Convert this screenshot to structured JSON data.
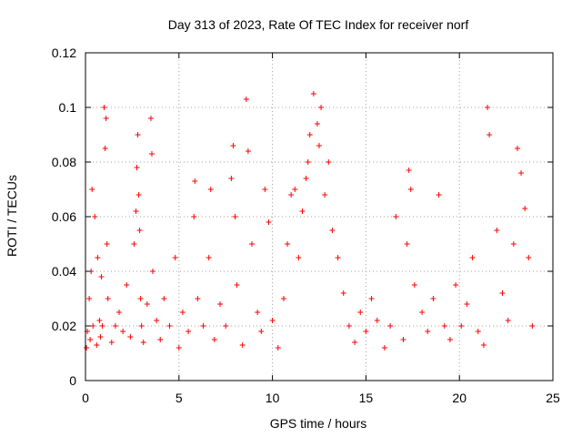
{
  "chart_data": {
    "type": "scatter",
    "title": "Day 313 of 2023, Rate Of TEC Index for receiver norf",
    "xlabel": "GPS time / hours",
    "ylabel": "ROTI / TECUs",
    "xlim": [
      0,
      25
    ],
    "ylim": [
      0,
      0.12
    ],
    "x_ticks": [
      "0",
      "5",
      "10",
      "15",
      "20",
      "25"
    ],
    "y_ticks": [
      "0",
      "0.02",
      "0.04",
      "0.06",
      "0.08",
      "0.1",
      "0.12"
    ],
    "grid": true,
    "marker": "plus",
    "color": "#ff0000",
    "series": [
      {
        "x": [
          0.05,
          0.1,
          0.2,
          0.25,
          0.3,
          0.35,
          0.4,
          0.5,
          0.6,
          0.65,
          0.75,
          0.8,
          0.85,
          0.9,
          1.0,
          1.05,
          1.1,
          1.15,
          1.2,
          1.4,
          1.6,
          1.8,
          2.0,
          2.2,
          2.4,
          2.6,
          2.7,
          2.75,
          2.8,
          2.85,
          2.9,
          2.95,
          3.0,
          3.1,
          3.3,
          3.5,
          3.55,
          3.6,
          3.8,
          4.0,
          4.2,
          4.5,
          4.8,
          5.0,
          5.2,
          5.5,
          5.8,
          5.85,
          6.0,
          6.3,
          6.6,
          6.7,
          6.9,
          7.2,
          7.5,
          7.8,
          7.9,
          8.0,
          8.1,
          8.4,
          8.6,
          8.7,
          8.9,
          9.2,
          9.4,
          9.6,
          9.8,
          10.0,
          10.3,
          10.6,
          10.8,
          11.0,
          11.2,
          11.4,
          11.6,
          11.8,
          11.9,
          12.0,
          12.2,
          12.4,
          12.5,
          12.6,
          12.8,
          13.0,
          13.2,
          13.5,
          13.8,
          14.1,
          14.4,
          14.7,
          15.0,
          15.3,
          15.6,
          16.0,
          16.3,
          16.6,
          17.0,
          17.2,
          17.3,
          17.4,
          17.6,
          18.0,
          18.3,
          18.6,
          18.9,
          19.2,
          19.5,
          19.8,
          20.1,
          20.4,
          20.7,
          21.0,
          21.3,
          21.5,
          21.6,
          22.0,
          22.3,
          22.6,
          22.9,
          23.1,
          23.3,
          23.5,
          23.7,
          23.9
        ],
        "y": [
          0.012,
          0.018,
          0.03,
          0.015,
          0.04,
          0.07,
          0.02,
          0.06,
          0.013,
          0.045,
          0.022,
          0.016,
          0.038,
          0.02,
          0.1,
          0.085,
          0.096,
          0.05,
          0.03,
          0.014,
          0.02,
          0.025,
          0.018,
          0.035,
          0.016,
          0.05,
          0.062,
          0.078,
          0.09,
          0.068,
          0.055,
          0.03,
          0.02,
          0.014,
          0.028,
          0.096,
          0.083,
          0.04,
          0.022,
          0.015,
          0.03,
          0.02,
          0.045,
          0.012,
          0.025,
          0.018,
          0.06,
          0.073,
          0.03,
          0.02,
          0.045,
          0.07,
          0.015,
          0.028,
          0.02,
          0.074,
          0.086,
          0.06,
          0.035,
          0.013,
          0.103,
          0.084,
          0.05,
          0.025,
          0.018,
          0.07,
          0.058,
          0.022,
          0.012,
          0.03,
          0.05,
          0.068,
          0.07,
          0.045,
          0.062,
          0.074,
          0.08,
          0.09,
          0.105,
          0.094,
          0.086,
          0.1,
          0.068,
          0.08,
          0.055,
          0.045,
          0.032,
          0.02,
          0.014,
          0.025,
          0.018,
          0.03,
          0.022,
          0.012,
          0.02,
          0.06,
          0.015,
          0.05,
          0.077,
          0.07,
          0.035,
          0.025,
          0.018,
          0.03,
          0.068,
          0.02,
          0.015,
          0.035,
          0.02,
          0.028,
          0.045,
          0.018,
          0.013,
          0.1,
          0.09,
          0.055,
          0.032,
          0.022,
          0.05,
          0.085,
          0.076,
          0.063,
          0.045,
          0.02
        ]
      }
    ]
  }
}
